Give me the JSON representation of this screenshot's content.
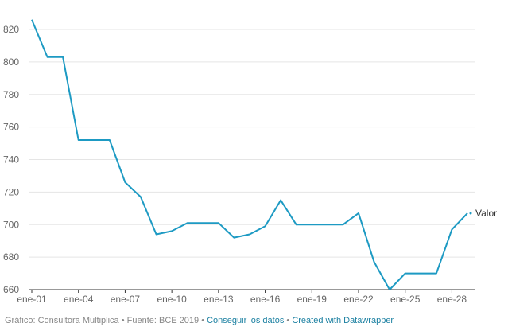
{
  "chart_data": {
    "type": "line",
    "x": [
      "ene-01",
      "ene-02",
      "ene-03",
      "ene-04",
      "ene-05",
      "ene-06",
      "ene-07",
      "ene-08",
      "ene-09",
      "ene-10",
      "ene-11",
      "ene-12",
      "ene-13",
      "ene-14",
      "ene-15",
      "ene-16",
      "ene-17",
      "ene-18",
      "ene-19",
      "ene-20",
      "ene-21",
      "ene-22",
      "ene-23",
      "ene-24",
      "ene-25",
      "ene-26",
      "ene-27",
      "ene-28",
      "ene-29"
    ],
    "x_tick_labels": [
      "ene-01",
      "ene-04",
      "ene-07",
      "ene-10",
      "ene-13",
      "ene-16",
      "ene-19",
      "ene-22",
      "ene-25",
      "ene-28"
    ],
    "series": [
      {
        "name": "Valor",
        "color": "#1d9ac3",
        "values": [
          826,
          803,
          803,
          752,
          752,
          752,
          726,
          717,
          694,
          696,
          701,
          701,
          701,
          692,
          694,
          699,
          715,
          700,
          700,
          700,
          700,
          707,
          677,
          660,
          670,
          670,
          670,
          697,
          707
        ]
      }
    ],
    "ylim": [
      660,
      830
    ],
    "y_ticks": [
      660,
      680,
      700,
      720,
      740,
      760,
      780,
      800,
      820
    ],
    "grid": "horizontal",
    "legend": "end-of-line label"
  },
  "footer": {
    "source": "Gráfico: Consultora Multiplica • Fuente: BCE 2019 • ",
    "link_data": "Conseguir los datos",
    "separator": " • ",
    "link_credit": "Created with Datawrapper"
  }
}
